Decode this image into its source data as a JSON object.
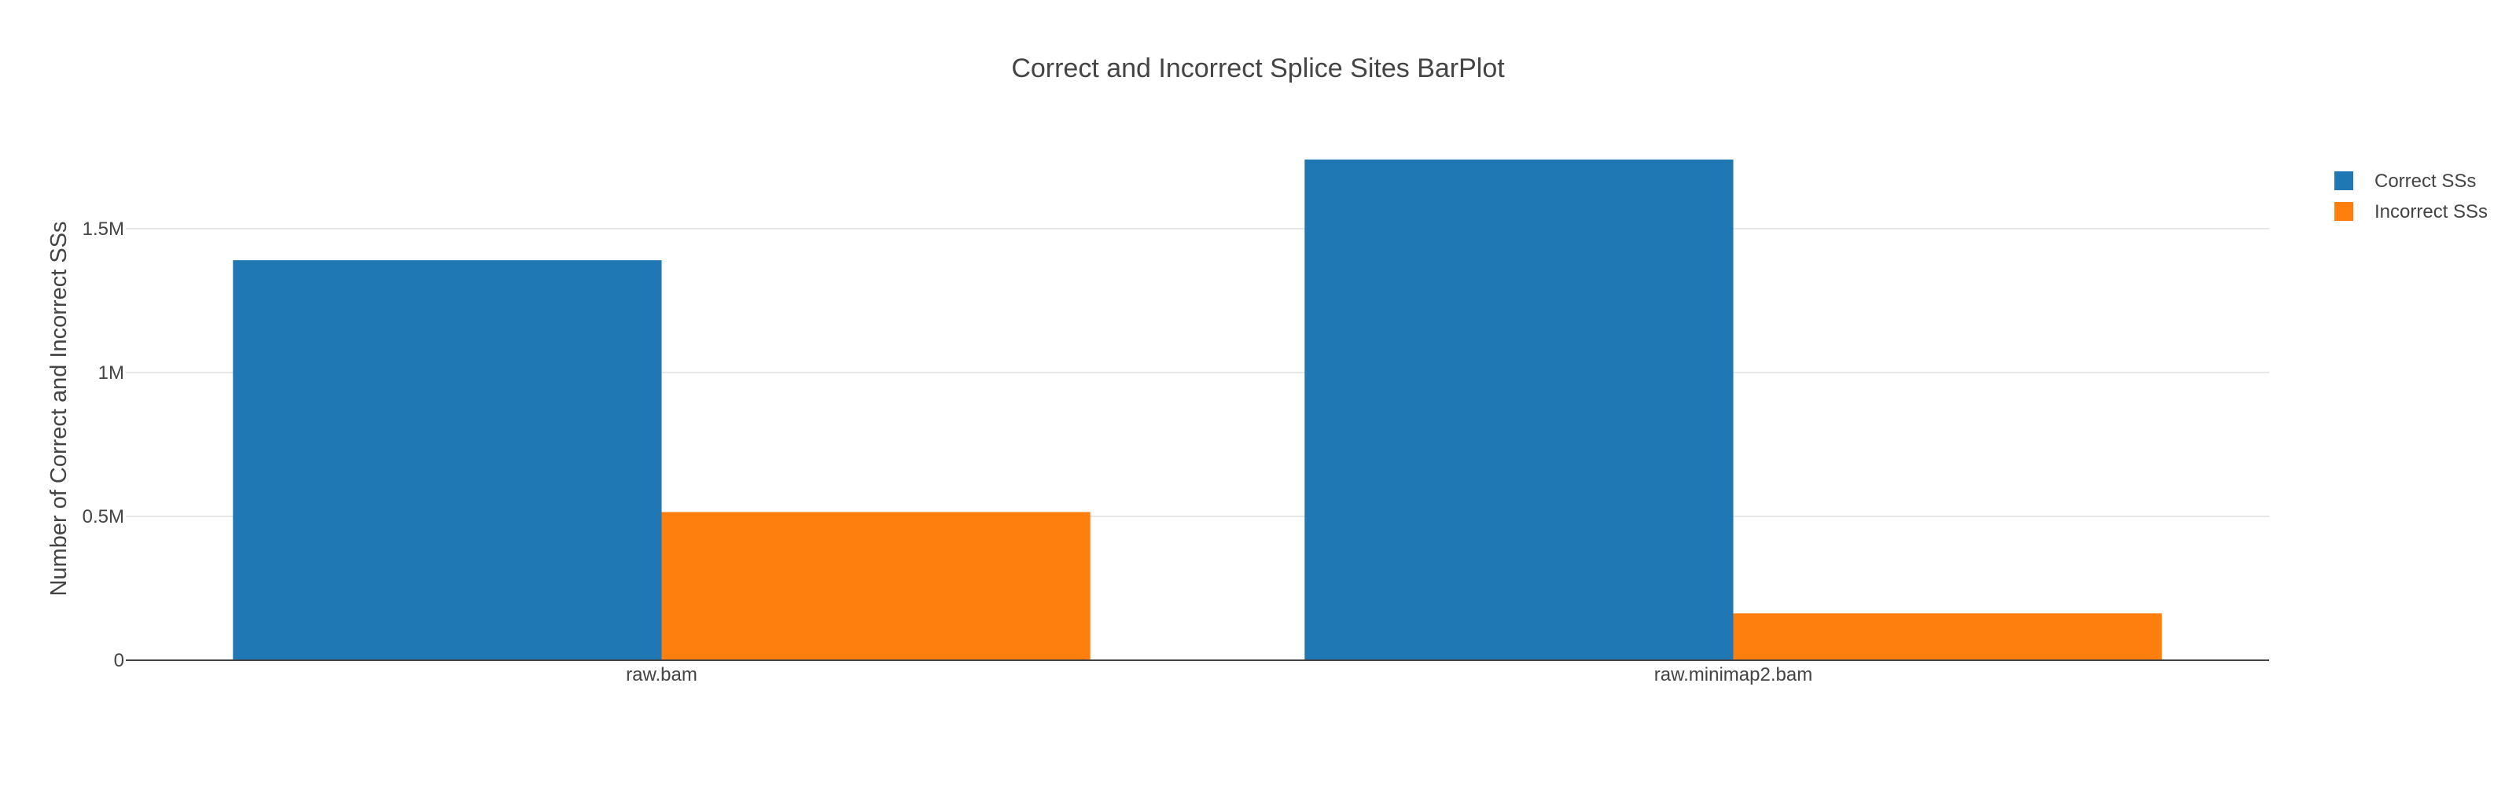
{
  "chart_data": {
    "type": "bar",
    "title": "Correct and Incorrect Splice Sites BarPlot",
    "xlabel": "",
    "ylabel": "Number of Correct and Incorrect SSs",
    "categories": [
      "raw.bam",
      "raw.minimap2.bam"
    ],
    "series": [
      {
        "name": "Correct SSs",
        "color": "#1f77b4",
        "values": [
          1390000,
          1740000
        ]
      },
      {
        "name": "Incorrect SSs",
        "color": "#ff7f0e",
        "values": [
          515000,
          163000
        ]
      }
    ],
    "ylim": [
      0,
      1830000
    ],
    "yticks": [
      {
        "value": 0,
        "label": "0"
      },
      {
        "value": 500000,
        "label": "0.5M"
      },
      {
        "value": 1000000,
        "label": "1M"
      },
      {
        "value": 1500000,
        "label": "1.5M"
      }
    ],
    "grid": true,
    "legend_position": "top-right"
  }
}
